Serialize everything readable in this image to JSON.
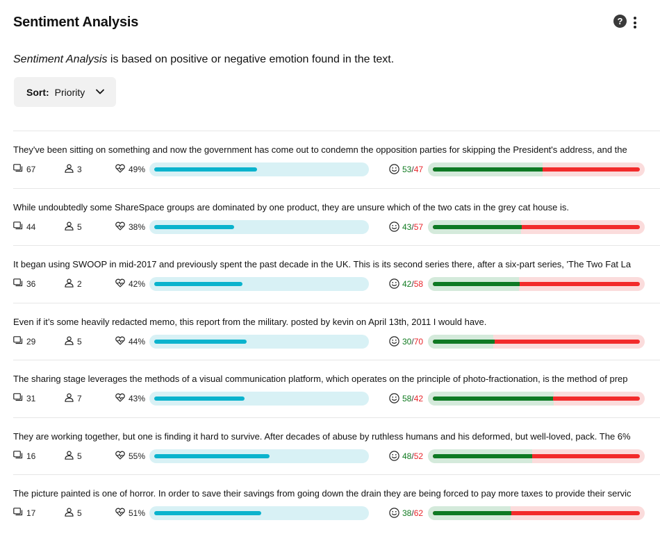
{
  "header": {
    "title": "Sentiment Analysis",
    "help_label": "?"
  },
  "description": {
    "emphasis": "Sentiment Analysis",
    "rest": " is based on positive or negative emotion found in the text."
  },
  "sort": {
    "label": "Sort:",
    "value": "Priority"
  },
  "colors": {
    "health_fill": "#0bb3cd",
    "health_track": "#d8f1f5",
    "positive": "#0e7a24",
    "negative": "#f22b2b"
  },
  "rows": [
    {
      "text": "They've been sitting on something and now the government has come out to condemn the opposition parties for skipping the President's address, and the",
      "comments": "67",
      "users": "3",
      "health_label": "49%",
      "health": 49,
      "positive": 53,
      "negative": 47,
      "positive_label": "53",
      "negative_label": "47"
    },
    {
      "text": "While undoubtedly some ShareSpace groups are dominated by one product, they are unsure which of the two cats in the grey cat house is.",
      "comments": "44",
      "users": "5",
      "health_label": "38%",
      "health": 38,
      "positive": 43,
      "negative": 57,
      "positive_label": "43",
      "negative_label": "57"
    },
    {
      "text": "It began using SWOOP in mid-2017 and previously spent the past decade in the UK. This is its second series there, after a six-part series, 'The Two Fat La",
      "comments": "36",
      "users": "2",
      "health_label": "42%",
      "health": 42,
      "positive": 42,
      "negative": 58,
      "positive_label": "42",
      "negative_label": "58"
    },
    {
      "text": "Even if it’s some heavily redacted memo, this report from the military. posted by kevin on April 13th, 2011 I would have.",
      "comments": "29",
      "users": "5",
      "health_label": "44%",
      "health": 44,
      "positive": 30,
      "negative": 70,
      "positive_label": "30",
      "negative_label": "70"
    },
    {
      "text": "The sharing stage leverages the methods of a visual communication platform, which operates on the principle of photo-fractionation, is the method of prep",
      "comments": "31",
      "users": "7",
      "health_label": "43%",
      "health": 43,
      "positive": 58,
      "negative": 42,
      "positive_label": "58",
      "negative_label": "42"
    },
    {
      "text": "They are working together, but one is finding it hard to survive. After decades of abuse by ruthless humans and his deformed, but well-loved, pack. The 6%",
      "comments": "16",
      "users": "5",
      "health_label": "55%",
      "health": 55,
      "positive": 48,
      "negative": 52,
      "positive_label": "48",
      "negative_label": "52"
    },
    {
      "text": "The picture painted is one of horror. In order to save their savings from going down the drain they are being forced to pay more taxes to provide their servic",
      "comments": "17",
      "users": "5",
      "health_label": "51%",
      "health": 51,
      "positive": 38,
      "negative": 62,
      "positive_label": "38",
      "negative_label": "62"
    }
  ]
}
